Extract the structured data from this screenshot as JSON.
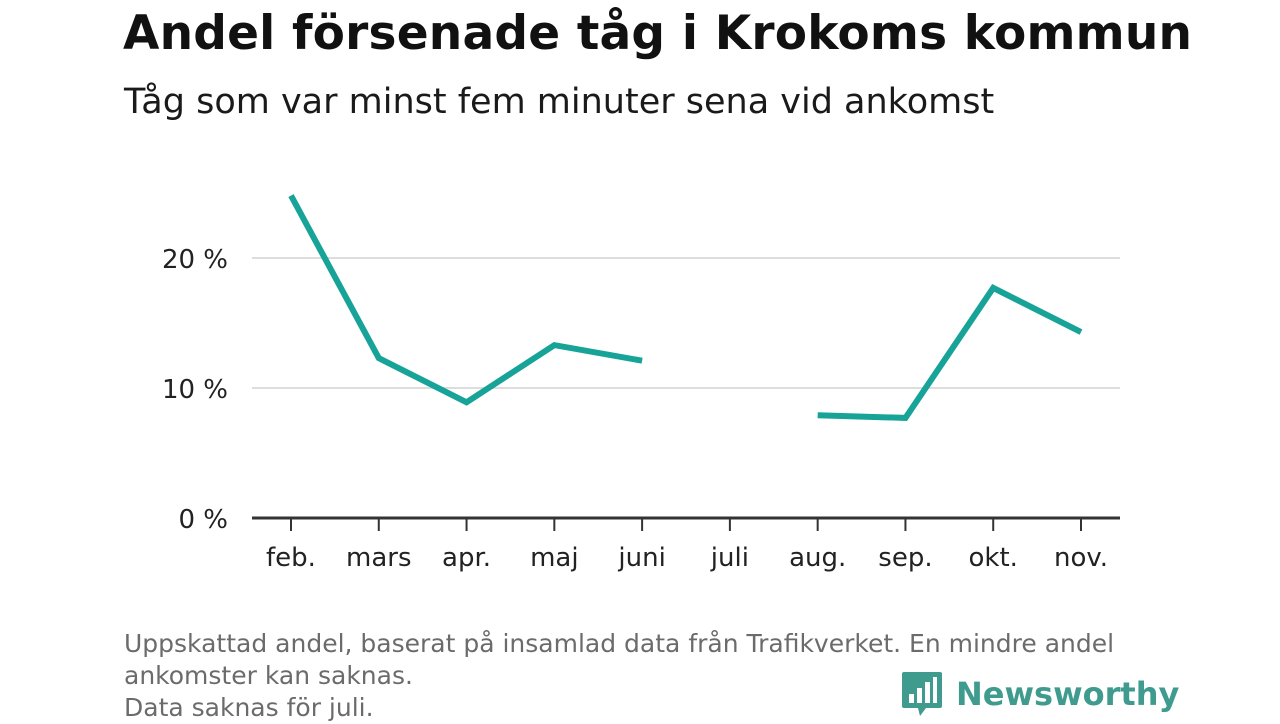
{
  "title": "Andel försenade tåg i Krokoms kommun",
  "subtitle": "Tåg som var minst fem minuter sena vid ankomst",
  "footnote": {
    "line1": "Uppskattad andel, baserat på insamlad data från Trafikverket. En mindre andel",
    "line2": "ankomster kan saknas.",
    "line3": "Data saknas för juli."
  },
  "logo": {
    "text": "Newsworthy",
    "icon": "bar-chart-speech-icon"
  },
  "colors": {
    "line": "#17a398",
    "grid": "#dddddd",
    "axis": "#333333",
    "logo": "#3f9b8d"
  },
  "chart_data": {
    "type": "line",
    "title": "Andel försenade tåg i Krokoms kommun",
    "subtitle": "Tåg som var minst fem minuter sena vid ankomst",
    "categories": [
      "feb.",
      "mars",
      "apr.",
      "maj",
      "juni",
      "juli",
      "aug.",
      "sep.",
      "okt.",
      "nov."
    ],
    "series": [
      {
        "values": [
          24.8,
          12.3,
          8.9,
          13.3,
          12.1,
          null,
          7.9,
          7.7,
          17.7,
          14.3
        ]
      }
    ],
    "yticks": [
      0,
      10,
      20
    ],
    "ytick_labels": [
      "0 %",
      "10 %",
      "20 %"
    ],
    "ylim": [
      0,
      25
    ],
    "grid": true,
    "xlabel": "",
    "ylabel": ""
  }
}
